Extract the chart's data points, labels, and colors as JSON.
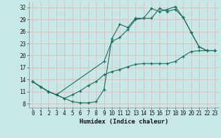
{
  "xlabel": "Humidex (Indice chaleur)",
  "background_color": "#c8e8e8",
  "grid_color": "#e8b8b8",
  "line_color": "#1a6b5a",
  "xlim": [
    -0.5,
    23.5
  ],
  "ylim": [
    7,
    33.5
  ],
  "xticks": [
    0,
    1,
    2,
    3,
    4,
    5,
    6,
    7,
    8,
    9,
    10,
    11,
    12,
    13,
    14,
    15,
    16,
    17,
    18,
    19,
    20,
    21,
    22,
    23
  ],
  "yticks": [
    8,
    11,
    14,
    17,
    20,
    23,
    26,
    29,
    32
  ],
  "line1_x": [
    0,
    1,
    2,
    3,
    4,
    5,
    6,
    7,
    8,
    9,
    10,
    11,
    12,
    13,
    14,
    15,
    16,
    17,
    18,
    19,
    20,
    21,
    22,
    23
  ],
  "line1_y": [
    13.5,
    12.2,
    11.0,
    10.2,
    9.3,
    8.5,
    8.2,
    8.2,
    8.5,
    11.5,
    24.2,
    27.8,
    27.0,
    29.3,
    29.3,
    31.7,
    31.0,
    31.5,
    32.2,
    29.5,
    25.8,
    22.2,
    21.2,
    21.2
  ],
  "line2_x": [
    0,
    1,
    2,
    3,
    9,
    10,
    11,
    12,
    13,
    14,
    15,
    16,
    17,
    18,
    19,
    20,
    21,
    22,
    23
  ],
  "line2_y": [
    13.5,
    12.2,
    11.0,
    10.2,
    18.5,
    23.5,
    24.5,
    26.5,
    29.0,
    29.3,
    29.3,
    31.7,
    31.0,
    31.5,
    29.5,
    25.8,
    22.2,
    21.2,
    21.2
  ],
  "line3_x": [
    0,
    1,
    2,
    3,
    4,
    5,
    6,
    7,
    8,
    9,
    10,
    11,
    12,
    13,
    14,
    15,
    16,
    17,
    18,
    19,
    20,
    21,
    22,
    23
  ],
  "line3_y": [
    13.5,
    12.2,
    11.0,
    10.2,
    9.3,
    10.2,
    11.2,
    12.5,
    13.5,
    15.2,
    16.0,
    16.5,
    17.2,
    17.8,
    18.0,
    18.0,
    18.0,
    18.0,
    18.5,
    19.8,
    21.0,
    21.2,
    21.2,
    21.2
  ]
}
